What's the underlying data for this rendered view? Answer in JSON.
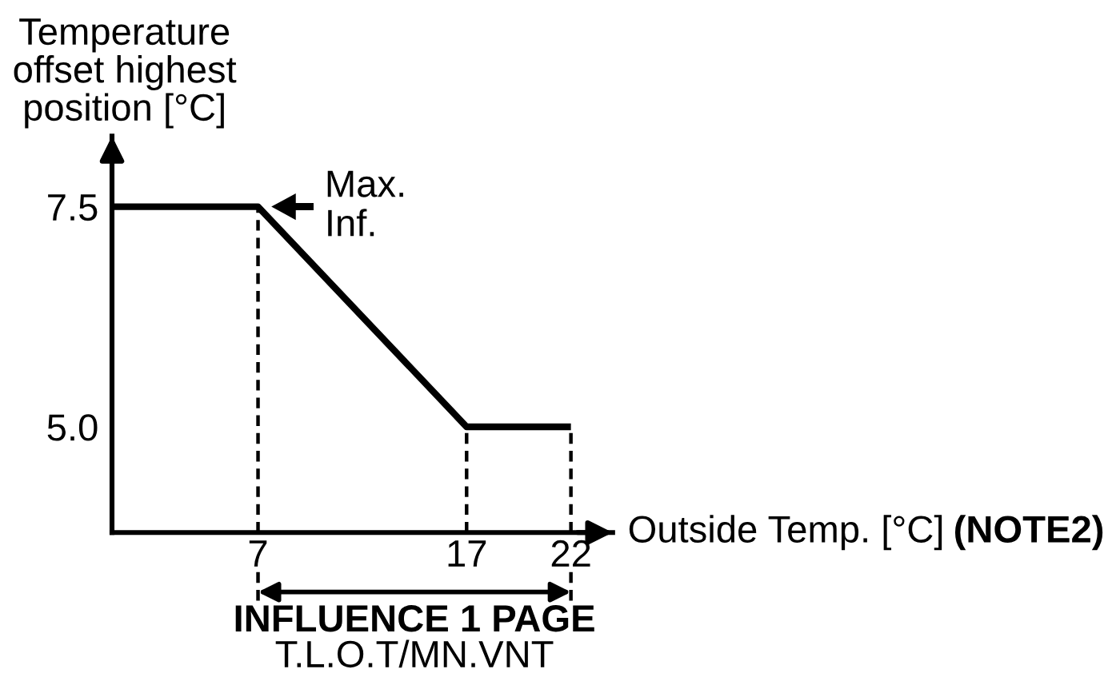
{
  "chart_data": {
    "type": "line",
    "ylabel": "Temperature\noffset highest\nposition [°C]",
    "xlabel": "Outside Temp. [°C]",
    "x": [
      0,
      7,
      17,
      22
    ],
    "series": [
      {
        "color": "#000000",
        "values": [
          7.5,
          7.5,
          5.0,
          5.0
        ]
      }
    ],
    "line_style": "solid",
    "xlim": [
      0,
      24
    ],
    "xticks": [
      7,
      17,
      22
    ],
    "ylim": [
      3.8,
      8.3
    ],
    "yticks": [
      {
        "value": 7.5,
        "label": "7.5"
      },
      {
        "value": 5.0,
        "label": "5.0"
      }
    ],
    "ref_lines": [
      {
        "axis": "x",
        "value": 7,
        "line_style": "dashed",
        "color": "#000000"
      },
      {
        "axis": "x",
        "value": 17,
        "line_style": "dashed",
        "color": "#000000"
      },
      {
        "axis": "x",
        "value": 22,
        "line_style": "dashed",
        "color": "#000000"
      }
    ],
    "annotations": [
      {
        "text": "Max.\nInf.",
        "x": 7,
        "y": 7.5
      },
      "(NOTE2)",
      "INFLUENCE 1 PAGE",
      "T.L.O.T/MN.VNT"
    ]
  }
}
